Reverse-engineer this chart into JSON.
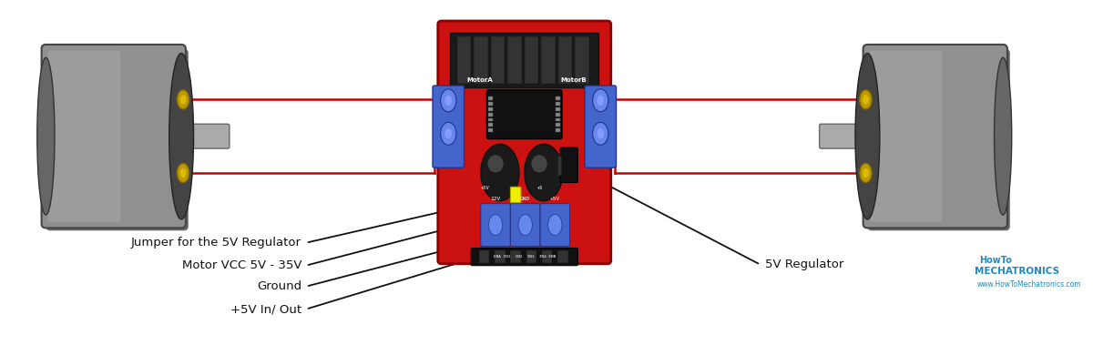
{
  "bg_color": "#ffffff",
  "fig_width": 12.0,
  "fig_height": 3.79,
  "board_color": "#cc1111",
  "board_dark": "#aa0000",
  "heatsink_color": "#1a1a1a",
  "ic_color": "#111111",
  "cap_color": "#1a1a1a",
  "connector_color": "#4466cc",
  "connector_dark": "#223388",
  "screw_color": "#6688dd",
  "wire_red": "#cc0000",
  "line_color": "#111111",
  "motor_gray": "#909090",
  "motor_dark": "#555555",
  "motor_light": "#cccccc",
  "terminal_gold": "#ccaa00",
  "shaft_gray": "#aaaaaa",
  "annotations": [
    {
      "text": "Jumper for the 5V Regulator",
      "xa": 0.293,
      "ya": 0.215,
      "xb": 0.467,
      "yb": 0.268
    },
    {
      "text": "Motor VCC 5V - 35V",
      "xa": 0.293,
      "ya": 0.165,
      "xb": 0.472,
      "yb": 0.245
    },
    {
      "text": "Ground",
      "xa": 0.293,
      "ya": 0.115,
      "xb": 0.478,
      "yb": 0.225
    },
    {
      "text": "+5V In/ Out",
      "xa": 0.293,
      "ya": 0.065,
      "xb": 0.488,
      "yb": 0.205
    }
  ],
  "ann_5v": {
    "text": "5V Regulator",
    "xa": 0.72,
    "ya": 0.23,
    "xb": 0.583,
    "yb": 0.44
  },
  "motor_a_text": "MotorA",
  "motor_b_text": "MotorB",
  "watermark": "www.HowToMechatronics.com",
  "logo_line1": "HowTo",
  "logo_line2": "MECHATRONICS"
}
